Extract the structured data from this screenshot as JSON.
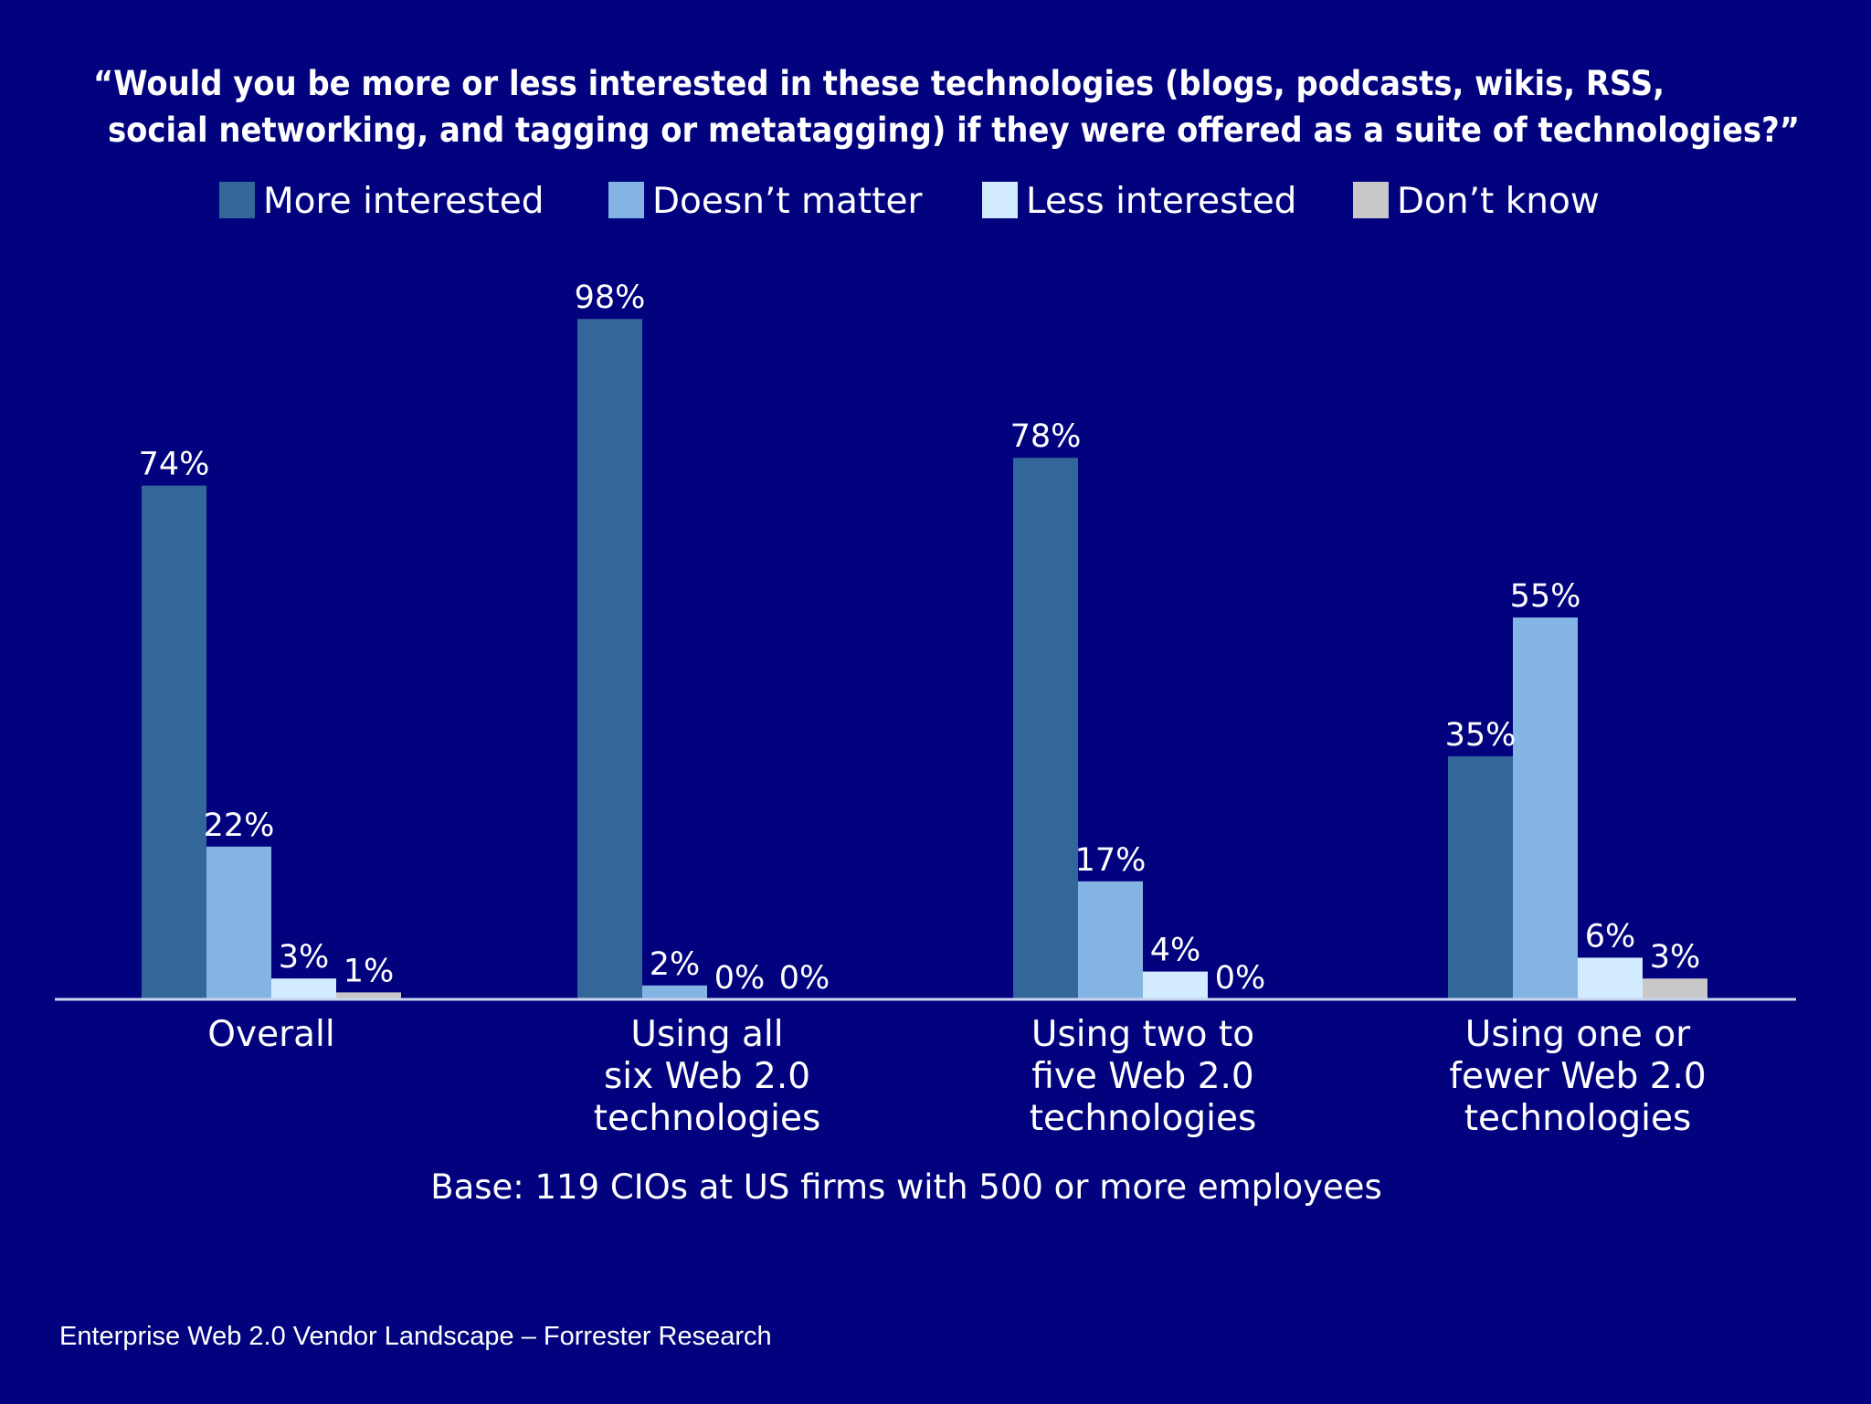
{
  "chart_data": {
    "type": "bar",
    "title_lines": [
      "“Would you be more or less interested in these technologies (blogs, podcasts, wikis, RSS,",
      "social networking, and tagging or metatagging) if they were offered as a suite of technologies?”"
    ],
    "categories": [
      [
        "Overall"
      ],
      [
        "Using all",
        "six Web 2.0",
        "technologies"
      ],
      [
        "Using two to",
        "five Web 2.0",
        "technologies"
      ],
      [
        "Using one or",
        "fewer Web 2.0",
        "technologies"
      ]
    ],
    "series": [
      {
        "name": "More interested",
        "color": "#336699",
        "values": [
          74,
          98,
          78,
          35
        ]
      },
      {
        "name": "Doesn’t matter",
        "color": "#84b4e4",
        "values": [
          22,
          2,
          17,
          55
        ]
      },
      {
        "name": "Less interested",
        "color": "#d4ecff",
        "values": [
          3,
          0,
          4,
          6
        ]
      },
      {
        "name": "Don’t know",
        "color": "#c8c8c8",
        "values": [
          1,
          0,
          0,
          3
        ]
      }
    ],
    "value_suffix": "%",
    "ylim": [
      0,
      100
    ],
    "grid": false,
    "legend_position": "top",
    "xlabel": "",
    "ylabel": "",
    "base_note": "Base: 119 CIOs at US firms with 500 or more employees"
  },
  "source": "Enterprise Web 2.0 Vendor Landscape – Forrester Research",
  "colors": {
    "background": "#02027e",
    "axis": "#c8d4f0"
  }
}
